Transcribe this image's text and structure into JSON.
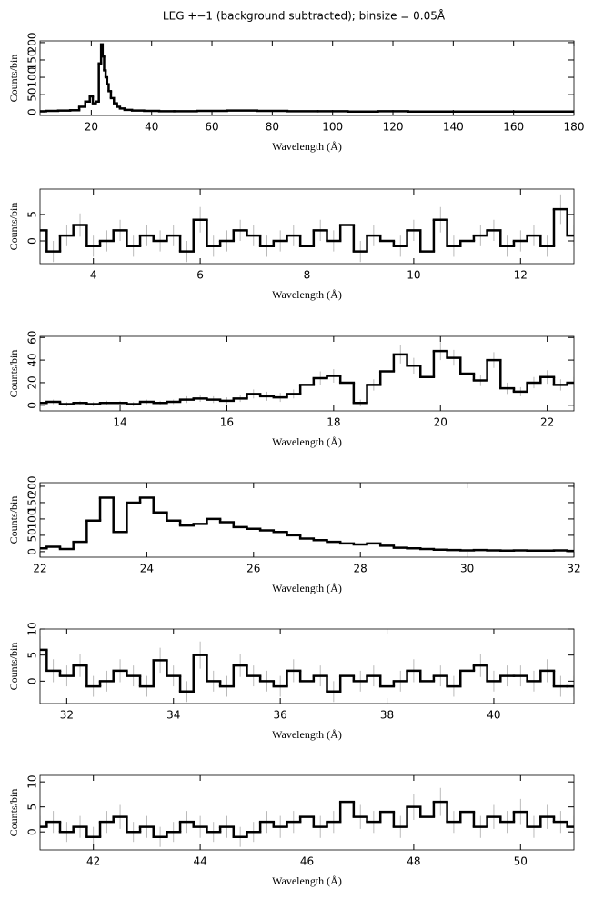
{
  "chart_data": [
    {
      "type": "step",
      "title": "LEG +−1 (background subtracted); binsize = 0.05Å",
      "xlabel": "Wavelength (Å)",
      "ylabel": "Counts/bin",
      "x": [
        3,
        7,
        11,
        15,
        17,
        19,
        20,
        21,
        22,
        23,
        23.5,
        24,
        24.5,
        25,
        25.5,
        26,
        27,
        28,
        29,
        30,
        32,
        35,
        40,
        45,
        50,
        60,
        70,
        80,
        90,
        100,
        110,
        120,
        130,
        140,
        150,
        160,
        170,
        180
      ],
      "values": [
        2,
        3,
        4,
        5,
        15,
        30,
        45,
        25,
        30,
        140,
        195,
        160,
        120,
        100,
        80,
        60,
        40,
        25,
        15,
        10,
        6,
        4,
        3,
        2,
        2,
        3,
        4,
        3,
        2,
        2,
        1,
        2,
        1,
        1,
        1,
        1,
        1,
        1
      ],
      "xlim": [
        3,
        180
      ],
      "ylim": [
        -10,
        205
      ],
      "xticks": [
        20,
        40,
        60,
        80,
        100,
        120,
        140,
        160,
        180
      ],
      "yticks": [
        0,
        50,
        100,
        150,
        200
      ],
      "color": "#000000"
    },
    {
      "type": "step",
      "xlabel": "Wavelength (Å)",
      "ylabel": "Counts/bin",
      "x": [
        3,
        3.25,
        3.5,
        3.75,
        4,
        4.25,
        4.5,
        4.75,
        5,
        5.25,
        5.5,
        5.75,
        6,
        6.25,
        6.5,
        6.75,
        7,
        7.25,
        7.5,
        7.75,
        8,
        8.25,
        8.5,
        8.75,
        9,
        9.25,
        9.5,
        9.75,
        10,
        10.25,
        10.5,
        10.75,
        11,
        11.25,
        11.5,
        11.75,
        12,
        12.25,
        12.5,
        12.75,
        13
      ],
      "values": [
        2,
        -2,
        1,
        3,
        -1,
        0,
        2,
        -1,
        1,
        0,
        1,
        -2,
        4,
        -1,
        0,
        2,
        1,
        -1,
        0,
        1,
        -1,
        2,
        0,
        3,
        -2,
        1,
        0,
        -1,
        2,
        -2,
        4,
        -1,
        0,
        1,
        2,
        -1,
        0,
        1,
        -1,
        6,
        1
      ],
      "errors": [
        2,
        2,
        2,
        2.2,
        2,
        2,
        2,
        2,
        2,
        2,
        2,
        2,
        2.4,
        2,
        2,
        2,
        2,
        2,
        2,
        2,
        2,
        2,
        2,
        2.2,
        2,
        2,
        2,
        2,
        2,
        2,
        2.4,
        2,
        2,
        2,
        2,
        2,
        2,
        2,
        2,
        2.8,
        2
      ],
      "xlim": [
        3,
        13
      ],
      "ylim": [
        -4.3,
        9.8
      ],
      "xticks": [
        4,
        6,
        8,
        10,
        12
      ],
      "yticks": [
        0,
        5
      ],
      "color": "#000000"
    },
    {
      "type": "step",
      "xlabel": "Wavelength (Å)",
      "ylabel": "Counts/bin",
      "x": [
        12.5,
        12.75,
        13,
        13.25,
        13.5,
        13.75,
        14,
        14.25,
        14.5,
        14.75,
        15,
        15.25,
        15.5,
        15.75,
        16,
        16.25,
        16.5,
        16.75,
        17,
        17.25,
        17.5,
        17.75,
        18,
        18.25,
        18.5,
        18.75,
        19,
        19.25,
        19.5,
        19.75,
        20,
        20.25,
        20.5,
        20.75,
        21,
        21.25,
        21.5,
        21.75,
        22,
        22.25,
        22.5
      ],
      "values": [
        2,
        3,
        1,
        2,
        1,
        2,
        2,
        1,
        3,
        2,
        3,
        5,
        6,
        5,
        4,
        6,
        10,
        8,
        7,
        10,
        18,
        24,
        26,
        20,
        2,
        18,
        30,
        45,
        35,
        25,
        48,
        42,
        28,
        22,
        40,
        15,
        12,
        20,
        25,
        18,
        20
      ],
      "errors": [
        2,
        2,
        2,
        2,
        2,
        2,
        2,
        2,
        2,
        2,
        2,
        3,
        3,
        3,
        3,
        3,
        4,
        4,
        4,
        4,
        5,
        6,
        6,
        5,
        3,
        5,
        6,
        8,
        7,
        6,
        8,
        7,
        6,
        5,
        7,
        5,
        4,
        5,
        6,
        5,
        5
      ],
      "xlim": [
        12.5,
        22.5
      ],
      "ylim": [
        -5,
        61
      ],
      "xticks": [
        14,
        16,
        18,
        20,
        22
      ],
      "yticks": [
        0,
        20,
        40,
        60
      ],
      "color": "#000000"
    },
    {
      "type": "step",
      "xlabel": "Wavelength (Å)",
      "ylabel": "Counts/bin",
      "x": [
        22,
        22.25,
        22.5,
        22.75,
        23,
        23.25,
        23.5,
        23.75,
        24,
        24.25,
        24.5,
        24.75,
        25,
        25.25,
        25.5,
        25.75,
        26,
        26.25,
        26.5,
        26.75,
        27,
        27.25,
        27.5,
        27.75,
        28,
        28.25,
        28.5,
        28.75,
        29,
        29.25,
        29.5,
        29.75,
        30,
        30.25,
        30.5,
        30.75,
        31,
        31.25,
        31.5,
        31.75,
        32
      ],
      "values": [
        10,
        15,
        8,
        30,
        95,
        165,
        60,
        150,
        165,
        120,
        95,
        80,
        85,
        100,
        90,
        75,
        70,
        65,
        60,
        50,
        40,
        35,
        30,
        25,
        22,
        25,
        18,
        12,
        10,
        8,
        6,
        5,
        4,
        5,
        4,
        3,
        4,
        3,
        3,
        4,
        2
      ],
      "xlim": [
        22,
        32
      ],
      "ylim": [
        -17,
        211
      ],
      "xticks": [
        22,
        24,
        26,
        28,
        30,
        32
      ],
      "yticks": [
        0,
        50,
        100,
        150,
        200
      ],
      "color": "#000000"
    },
    {
      "type": "step",
      "xlabel": "Wavelength (Å)",
      "ylabel": "Counts/bin",
      "x": [
        31.5,
        31.75,
        32,
        32.25,
        32.5,
        32.75,
        33,
        33.25,
        33.5,
        33.75,
        34,
        34.25,
        34.5,
        34.75,
        35,
        35.25,
        35.5,
        35.75,
        36,
        36.25,
        36.5,
        36.75,
        37,
        37.25,
        37.5,
        37.75,
        38,
        38.25,
        38.5,
        38.75,
        39,
        39.25,
        39.5,
        39.75,
        40,
        40.25,
        40.5,
        40.75,
        41,
        41.25,
        41.5
      ],
      "values": [
        6,
        2,
        1,
        3,
        -1,
        0,
        2,
        1,
        -1,
        4,
        1,
        -2,
        5,
        0,
        -1,
        3,
        1,
        0,
        -1,
        2,
        0,
        1,
        -2,
        1,
        0,
        1,
        -1,
        0,
        2,
        0,
        1,
        -1,
        2,
        3,
        0,
        1,
        1,
        0,
        2,
        -1,
        -1
      ],
      "errors": [
        2.6,
        2.2,
        2,
        2.2,
        2,
        2,
        2.2,
        2,
        2,
        2.4,
        2,
        2,
        2.6,
        2,
        2,
        2.2,
        2,
        2,
        2,
        2.2,
        2,
        2,
        2,
        2,
        2,
        2,
        2,
        2,
        2.2,
        2,
        2,
        2,
        2.2,
        2.2,
        2,
        2,
        2,
        2,
        2.2,
        2,
        2
      ],
      "xlim": [
        31.5,
        41.5
      ],
      "ylim": [
        -4.3,
        10
      ],
      "xticks": [
        32,
        34,
        36,
        38,
        40
      ],
      "yticks": [
        0,
        5,
        10
      ],
      "color": "#000000"
    },
    {
      "type": "step",
      "xlabel": "Wavelength (Å)",
      "ylabel": "Counts/bin",
      "x": [
        41,
        41.25,
        41.5,
        41.75,
        42,
        42.25,
        42.5,
        42.75,
        43,
        43.25,
        43.5,
        43.75,
        44,
        44.25,
        44.5,
        44.75,
        45,
        45.25,
        45.5,
        45.75,
        46,
        46.25,
        46.5,
        46.75,
        47,
        47.25,
        47.5,
        47.75,
        48,
        48.25,
        48.5,
        48.75,
        49,
        49.25,
        49.5,
        49.75,
        50,
        50.25,
        50.5,
        50.75,
        51
      ],
      "values": [
        1,
        2,
        0,
        1,
        -1,
        2,
        3,
        0,
        1,
        -1,
        0,
        2,
        1,
        0,
        1,
        -1,
        0,
        2,
        1,
        2,
        3,
        1,
        2,
        6,
        3,
        2,
        4,
        1,
        5,
        3,
        6,
        2,
        4,
        1,
        3,
        2,
        4,
        1,
        3,
        2,
        1
      ],
      "errors": [
        2.2,
        2.2,
        2,
        2.2,
        2,
        2.2,
        2.4,
        2,
        2.2,
        2,
        2,
        2.2,
        2.2,
        2,
        2.2,
        2,
        2,
        2.2,
        2.2,
        2.2,
        2.4,
        2.2,
        2.2,
        2.8,
        2.4,
        2.2,
        2.6,
        2.2,
        2.6,
        2.4,
        2.8,
        2.2,
        2.6,
        2.2,
        2.4,
        2.2,
        2.6,
        2.2,
        2.4,
        2.2,
        2.2
      ],
      "xlim": [
        41,
        51
      ],
      "ylim": [
        -3.6,
        11.3
      ],
      "xticks": [
        42,
        44,
        46,
        48,
        50
      ],
      "yticks": [
        0,
        5,
        10
      ],
      "color": "#000000"
    }
  ]
}
